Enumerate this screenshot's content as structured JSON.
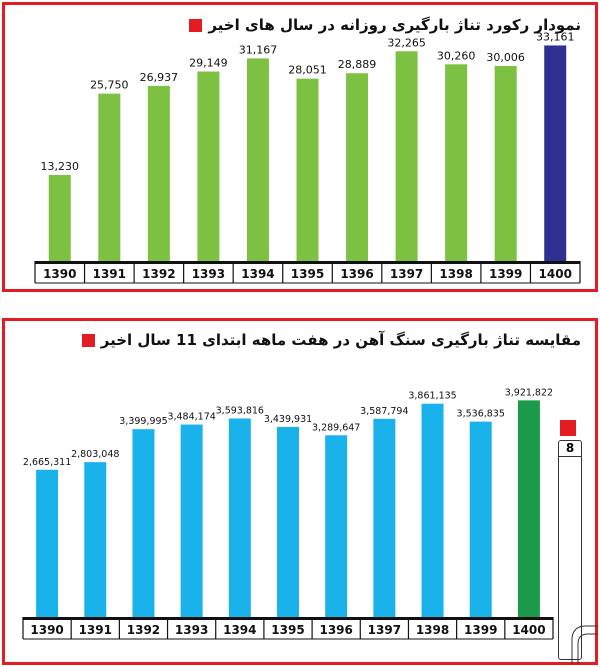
{
  "chart_data": [
    {
      "type": "bar",
      "title": "نمودار رکورد تناژ بارگیری روزانه در سال های اخیر",
      "categories": [
        "1390",
        "1391",
        "1392",
        "1393",
        "1394",
        "1395",
        "1396",
        "1397",
        "1398",
        "1399",
        "1400"
      ],
      "values": [
        13230,
        25750,
        26937,
        29149,
        31167,
        28051,
        28889,
        32265,
        30260,
        30006,
        33161
      ],
      "value_labels": [
        "13,230",
        "25,750",
        "26,937",
        "29,149",
        "31,167",
        "28,051",
        "28,889",
        "32,265",
        "30,260",
        "30,006",
        "33,161"
      ],
      "colors": [
        "#7dc143",
        "#7dc143",
        "#7dc143",
        "#7dc143",
        "#7dc143",
        "#7dc143",
        "#7dc143",
        "#7dc143",
        "#7dc143",
        "#7dc143",
        "#2e3192"
      ],
      "ylim": [
        0,
        36000
      ],
      "grid": false,
      "xlabel": "",
      "ylabel": ""
    },
    {
      "type": "bar",
      "title": "مقایسه تناژ بارگیری سنگ آهن در هفت ماهه ابتدای 11 سال اخیر",
      "categories": [
        "1390",
        "1391",
        "1392",
        "1393",
        "1394",
        "1395",
        "1396",
        "1397",
        "1398",
        "1399",
        "1400"
      ],
      "values": [
        2665311,
        2803048,
        3399995,
        3484174,
        3593816,
        3439931,
        3289647,
        3587794,
        3861135,
        3536835,
        3921822
      ],
      "value_labels": [
        "2,665,311",
        "2,803,048",
        "3,399,995",
        "3,484,174",
        "3,593,816",
        "3,439,931",
        "3,289,647",
        "3,587,794",
        "3,861,135",
        "3,536,835",
        "3,921,822"
      ],
      "colors": [
        "#1ab2ea",
        "#1ab2ea",
        "#1ab2ea",
        "#1ab2ea",
        "#1ab2ea",
        "#1ab2ea",
        "#1ab2ea",
        "#1ab2ea",
        "#1ab2ea",
        "#1ab2ea",
        "#1a9a4a"
      ],
      "ylim": [
        0,
        4200000
      ],
      "grid": false,
      "xlabel": "",
      "ylabel": ""
    }
  ],
  "side_badge": {
    "label": "8"
  },
  "colors": {
    "frame": "#e31b23",
    "axis_bar": "#111111"
  }
}
